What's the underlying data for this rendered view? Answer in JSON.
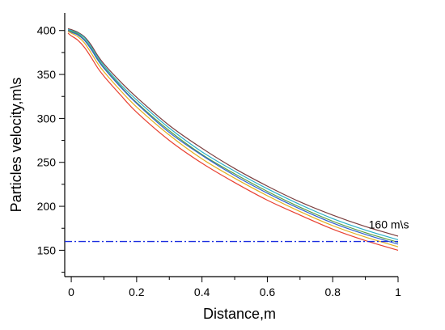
{
  "chart_data": {
    "type": "line",
    "title": "",
    "xlabel": "Distance,m",
    "ylabel": "Particles velocity,m\\s",
    "xlim": [
      -0.02,
      1.0
    ],
    "ylim": [
      120,
      420
    ],
    "xticks": [
      0,
      0.2,
      0.4,
      0.6,
      0.8,
      1
    ],
    "xtick_labels": [
      "0",
      "0.2",
      "0.4",
      "0.6",
      "0.8",
      "1"
    ],
    "yticks": [
      150,
      200,
      250,
      300,
      350,
      400
    ],
    "ytick_labels": [
      "150",
      "200",
      "250",
      "300",
      "350",
      "400"
    ],
    "grid": false,
    "legend": "none",
    "x": [
      -0.01,
      0.0,
      0.02,
      0.04,
      0.06,
      0.08,
      0.1,
      0.15,
      0.2,
      0.3,
      0.4,
      0.5,
      0.6,
      0.7,
      0.8,
      0.9,
      1.0
    ],
    "series": [
      {
        "color": "#7b3f3f",
        "values": [
          402,
          401,
          398,
          393,
          384,
          372,
          362,
          342,
          324,
          292,
          266,
          243,
          223,
          205,
          190,
          177,
          166
        ]
      },
      {
        "color": "#2ab0c8",
        "values": [
          401,
          400,
          397,
          392,
          382,
          370,
          360,
          339,
          321,
          289,
          262,
          240,
          220,
          202,
          186,
          173,
          162
        ]
      },
      {
        "color": "#5aa040",
        "values": [
          400,
          399,
          396,
          390,
          380,
          368,
          358,
          337,
          318,
          286,
          259,
          237,
          217,
          199,
          183,
          170,
          159
        ]
      },
      {
        "color": "#3060d0",
        "values": [
          400,
          398,
          395,
          389,
          379,
          367,
          357,
          336,
          317,
          284,
          258,
          235,
          215,
          197,
          181,
          168,
          157
        ]
      },
      {
        "color": "#e0b020",
        "values": [
          399,
          397,
          393,
          386,
          375,
          363,
          353,
          332,
          313,
          281,
          254,
          232,
          212,
          194,
          178,
          165,
          154
        ]
      },
      {
        "color": "#e84030",
        "values": [
          397,
          394,
          389,
          381,
          370,
          358,
          348,
          327,
          307,
          275,
          249,
          227,
          207,
          190,
          174,
          161,
          150
        ]
      }
    ],
    "reference_line": {
      "y": 160,
      "style": "dash-dot",
      "color": "#1a2ee0"
    },
    "annotation": {
      "text": "160 m\\s",
      "x": 0.91,
      "y": 172
    }
  }
}
